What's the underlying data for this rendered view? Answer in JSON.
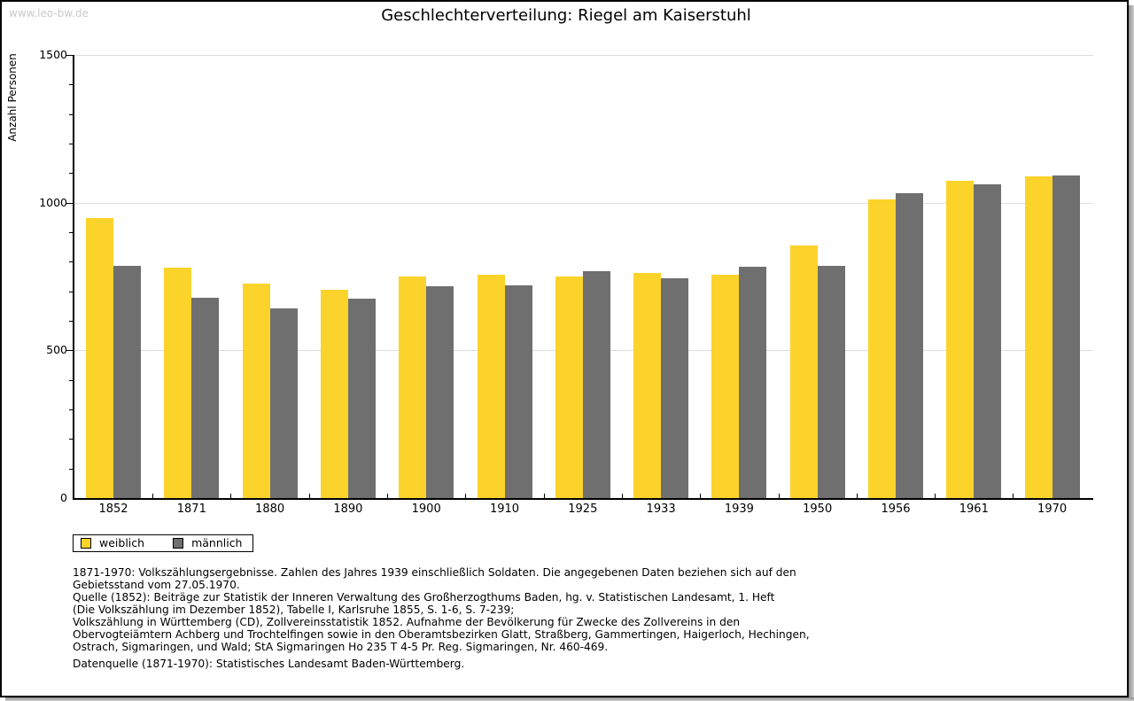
{
  "page": {
    "watermark": "www.leo-bw.de",
    "title": "Geschlechterverteilung: Riegel am Kaiserstuhl"
  },
  "chart_data": {
    "type": "bar",
    "title": "Geschlechterverteilung: Riegel am Kaiserstuhl",
    "xlabel": "",
    "ylabel": "Anzahl Personen",
    "ylim": [
      0,
      1500
    ],
    "yticks_labeled": [
      0,
      500,
      1000,
      1500
    ],
    "minor_tick_step": 100,
    "grid": "horizontal major gridlines at 500/1000/1500, light gray",
    "legend_position": "below plot, bottom-left",
    "categories": [
      "1852",
      "1871",
      "1880",
      "1890",
      "1900",
      "1910",
      "1925",
      "1933",
      "1939",
      "1950",
      "1956",
      "1961",
      "1970"
    ],
    "series": [
      {
        "name": "weiblich",
        "color": "#FCD32B",
        "values": [
          949,
          780,
          725,
          706,
          749,
          755,
          750,
          763,
          756,
          854,
          1012,
          1074,
          1090
        ]
      },
      {
        "name": "männlich",
        "color": "#6F6F6F",
        "values": [
          787,
          677,
          641,
          676,
          718,
          721,
          769,
          745,
          783,
          787,
          1032,
          1063,
          1092
        ]
      }
    ]
  },
  "footnotes": {
    "block1": "1871-1970: Volkszählungsergebnisse. Zahlen des Jahres 1939 einschließlich Soldaten. Die angegebenen Daten beziehen sich auf den\nGebietsstand vom 27.05.1970.\nQuelle (1852): Beiträge zur Statistik der Inneren Verwaltung des Großherzogthums Baden, hg. v. Statistischen Landesamt, 1. Heft\n(Die Volkszählung im Dezember 1852), Tabelle I, Karlsruhe 1855, S. 1-6, S. 7-239;\nVolkszählung in Württemberg (CD), Zollvereinsstatistik 1852. Aufnahme der Bevölkerung für Zwecke des Zollvereins in den\nObervogteiämtern Achberg und Trochtelfingen sowie in den Oberamtsbezirken Glatt, Straßberg, Gammertingen, Haigerloch, Hechingen,\nOstrach, Sigmaringen, und Wald; StA Sigmaringen Ho 235 T 4-5 Pr. Reg. Sigmaringen, Nr. 460-469.",
    "block2": "Datenquelle (1871-1970): Statistisches Landesamt Baden-Württemberg."
  }
}
